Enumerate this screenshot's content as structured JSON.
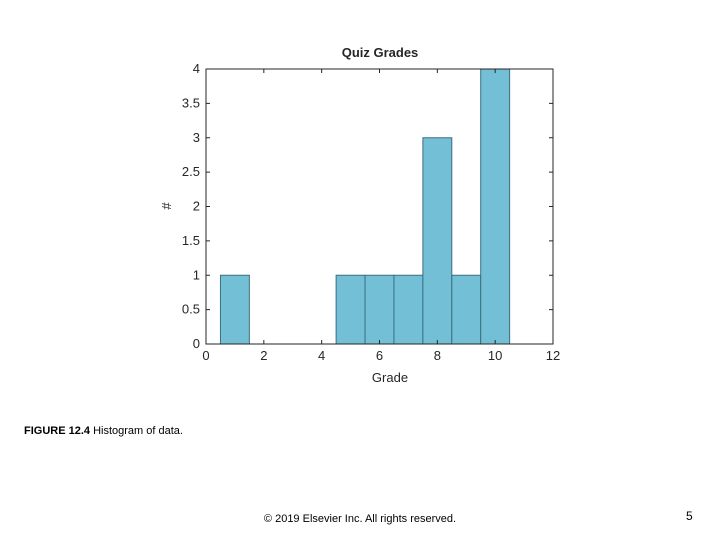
{
  "chart_data": {
    "type": "bar",
    "title": "Quiz Grades",
    "xlabel": "Grade",
    "ylabel": "#",
    "xlim": [
      0,
      12
    ],
    "ylim": [
      0,
      4
    ],
    "x_ticks": [
      "0",
      "2",
      "4",
      "6",
      "8",
      "10",
      "12"
    ],
    "y_ticks": [
      "0",
      "0.5",
      "1",
      "1.5",
      "2",
      "2.5",
      "3",
      "3.5",
      "4"
    ],
    "bins": [
      {
        "x0": 0.5,
        "x1": 1.5,
        "count": 1
      },
      {
        "x0": 1.5,
        "x1": 2.5,
        "count": 0
      },
      {
        "x0": 2.5,
        "x1": 3.5,
        "count": 0
      },
      {
        "x0": 3.5,
        "x1": 4.5,
        "count": 0
      },
      {
        "x0": 4.5,
        "x1": 5.5,
        "count": 1
      },
      {
        "x0": 5.5,
        "x1": 6.5,
        "count": 1
      },
      {
        "x0": 6.5,
        "x1": 7.5,
        "count": 1
      },
      {
        "x0": 7.5,
        "x1": 8.5,
        "count": 3
      },
      {
        "x0": 8.5,
        "x1": 9.5,
        "count": 1
      },
      {
        "x0": 9.5,
        "x1": 10.5,
        "count": 4
      }
    ],
    "bar_color": "#72bfd6",
    "edge_color": "#3d6f80",
    "grid": false
  },
  "caption": {
    "label": "FIGURE 12.4",
    "text": "Histogram of data."
  },
  "footer": {
    "copyright": "© 2019 Elsevier Inc. All rights reserved.",
    "page_number": "5"
  }
}
